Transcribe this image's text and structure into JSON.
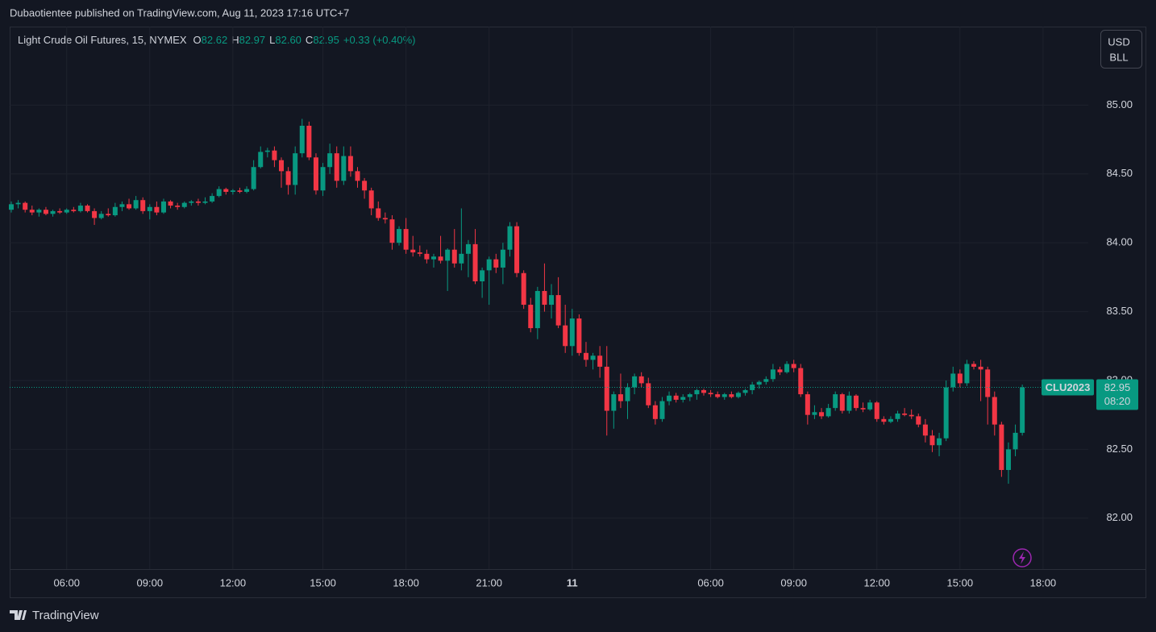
{
  "header": {
    "publisher": "Dubaotientee published on TradingView.com, Aug 11, 2023 17:16 UTC+7"
  },
  "chart_data": {
    "type": "candlestick",
    "title": "Light Crude Oil Futures, 15, NYMEX",
    "legend": [
      {
        "label": "O",
        "value": "82.62"
      },
      {
        "label": "H",
        "value": "82.97"
      },
      {
        "label": "L",
        "value": "82.60"
      },
      {
        "label": "C",
        "value": "82.95"
      }
    ],
    "change": "+0.33 (+0.40%)",
    "currency": [
      "USD",
      "BLL"
    ],
    "price_label": {
      "symbol": "CLU2023",
      "price": "82.95",
      "countdown": "08:20"
    },
    "up_color": "#089981",
    "down_color": "#f23645",
    "grid": true,
    "ylim": [
      81.63,
      85.57
    ],
    "yticks": [
      {
        "value": 82,
        "label": "82.00"
      },
      {
        "value": 82.5,
        "label": "82.50"
      },
      {
        "value": 83,
        "label": "83.00"
      },
      {
        "value": 83.5,
        "label": "83.50"
      },
      {
        "value": 84,
        "label": "84.00"
      },
      {
        "value": 84.5,
        "label": "84.50"
      },
      {
        "value": 85,
        "label": "85.00"
      }
    ],
    "categories": [
      null,
      null,
      null,
      null,
      null,
      null,
      null,
      null,
      "06:00",
      null,
      null,
      null,
      null,
      null,
      null,
      null,
      null,
      null,
      null,
      null,
      "09:00",
      null,
      null,
      null,
      null,
      null,
      null,
      null,
      null,
      null,
      null,
      null,
      "12:00",
      null,
      null,
      null,
      null,
      null,
      null,
      null,
      null,
      null,
      null,
      null,
      null,
      "15:00",
      null,
      null,
      null,
      null,
      null,
      null,
      null,
      null,
      null,
      null,
      null,
      "18:00",
      null,
      null,
      null,
      null,
      null,
      null,
      null,
      null,
      null,
      null,
      null,
      "21:00",
      null,
      null,
      null,
      null,
      null,
      null,
      null,
      null,
      null,
      null,
      null,
      "11",
      null,
      null,
      null,
      null,
      null,
      null,
      null,
      null,
      null,
      null,
      null,
      null,
      null,
      null,
      null,
      null,
      null,
      null,
      null,
      "06:00",
      null,
      null,
      null,
      null,
      null,
      null,
      null,
      null,
      null,
      null,
      null,
      "09:00",
      null,
      null,
      null,
      null,
      null,
      null,
      null,
      null,
      null,
      null,
      null,
      "12:00",
      null,
      null,
      null,
      null,
      null,
      null,
      null,
      null,
      null,
      null,
      null,
      "15:00",
      null,
      null,
      null,
      null,
      null,
      null,
      null,
      null,
      null,
      null,
      null,
      "18:00"
    ],
    "ohlc": [
      [
        84.24,
        84.3,
        84.22,
        84.28
      ],
      [
        84.28,
        84.31,
        84.25,
        84.29
      ],
      [
        84.29,
        84.3,
        84.22,
        84.24
      ],
      [
        84.24,
        84.27,
        84.2,
        84.22
      ],
      [
        84.22,
        84.25,
        84.19,
        84.24
      ],
      [
        84.24,
        84.26,
        84.2,
        84.21
      ],
      [
        84.21,
        84.24,
        84.19,
        84.23
      ],
      [
        84.23,
        84.25,
        84.21,
        84.22
      ],
      [
        84.22,
        84.25,
        84.21,
        84.24
      ],
      [
        84.24,
        84.26,
        84.22,
        84.23
      ],
      [
        84.23,
        84.29,
        84.22,
        84.27
      ],
      [
        84.27,
        84.28,
        84.22,
        84.23
      ],
      [
        84.23,
        84.25,
        84.13,
        84.18
      ],
      [
        84.18,
        84.23,
        84.17,
        84.21
      ],
      [
        84.21,
        84.25,
        84.19,
        84.2
      ],
      [
        84.2,
        84.29,
        84.19,
        84.26
      ],
      [
        84.26,
        84.3,
        84.23,
        84.28
      ],
      [
        84.28,
        84.32,
        84.24,
        84.25
      ],
      [
        84.25,
        84.34,
        84.24,
        84.31
      ],
      [
        84.31,
        84.33,
        84.21,
        84.23
      ],
      [
        84.23,
        84.28,
        84.17,
        84.26
      ],
      [
        84.26,
        84.3,
        84.2,
        84.22
      ],
      [
        84.22,
        84.32,
        84.21,
        84.3
      ],
      [
        84.3,
        84.31,
        84.25,
        84.27
      ],
      [
        84.27,
        84.29,
        84.24,
        84.26
      ],
      [
        84.26,
        84.3,
        84.25,
        84.29
      ],
      [
        84.29,
        84.31,
        84.27,
        84.3
      ],
      [
        84.3,
        84.32,
        84.27,
        84.29
      ],
      [
        84.29,
        84.33,
        84.28,
        84.3
      ],
      [
        84.3,
        84.36,
        84.29,
        84.34
      ],
      [
        84.34,
        84.41,
        84.33,
        84.39
      ],
      [
        84.39,
        84.4,
        84.35,
        84.37
      ],
      [
        84.37,
        84.39,
        84.35,
        84.38
      ],
      [
        84.38,
        84.4,
        84.36,
        84.37
      ],
      [
        84.37,
        84.41,
        84.36,
        84.39
      ],
      [
        84.39,
        84.6,
        84.38,
        84.55
      ],
      [
        84.55,
        84.7,
        84.54,
        84.66
      ],
      [
        84.66,
        84.69,
        84.62,
        84.67
      ],
      [
        84.67,
        84.7,
        84.55,
        84.6
      ],
      [
        84.6,
        84.62,
        84.4,
        84.52
      ],
      [
        84.52,
        84.55,
        84.35,
        84.42
      ],
      [
        84.42,
        84.7,
        84.35,
        84.65
      ],
      [
        84.65,
        84.9,
        84.62,
        84.85
      ],
      [
        84.85,
        84.88,
        84.6,
        84.62
      ],
      [
        84.62,
        84.65,
        84.35,
        84.38
      ],
      [
        84.38,
        84.58,
        84.34,
        84.55
      ],
      [
        84.55,
        84.72,
        84.5,
        84.65
      ],
      [
        84.65,
        84.7,
        84.4,
        84.45
      ],
      [
        84.45,
        84.7,
        84.42,
        84.63
      ],
      [
        84.63,
        84.7,
        84.48,
        84.52
      ],
      [
        84.52,
        84.55,
        84.4,
        84.45
      ],
      [
        84.45,
        84.47,
        84.32,
        84.38
      ],
      [
        84.38,
        84.4,
        84.2,
        84.25
      ],
      [
        84.25,
        84.3,
        84.16,
        84.18
      ],
      [
        84.18,
        84.22,
        84.14,
        84.17
      ],
      [
        84.17,
        84.2,
        83.95,
        84.0
      ],
      [
        84.0,
        84.12,
        83.98,
        84.1
      ],
      [
        84.1,
        84.18,
        83.92,
        83.95
      ],
      [
        83.95,
        84.05,
        83.9,
        83.93
      ],
      [
        83.93,
        83.98,
        83.9,
        83.92
      ],
      [
        83.92,
        83.95,
        83.85,
        83.88
      ],
      [
        83.88,
        83.92,
        83.82,
        83.9
      ],
      [
        83.9,
        84.05,
        83.85,
        83.87
      ],
      [
        83.87,
        83.96,
        83.65,
        83.95
      ],
      [
        83.95,
        84.1,
        83.82,
        83.85
      ],
      [
        83.85,
        84.25,
        83.8,
        83.92
      ],
      [
        83.92,
        84.02,
        83.75,
        83.99
      ],
      [
        83.99,
        84.1,
        83.7,
        83.72
      ],
      [
        83.72,
        83.82,
        83.6,
        83.8
      ],
      [
        83.8,
        83.9,
        83.55,
        83.88
      ],
      [
        83.88,
        83.92,
        83.78,
        83.82
      ],
      [
        83.82,
        84.0,
        83.7,
        83.95
      ],
      [
        83.95,
        84.15,
        83.9,
        84.12
      ],
      [
        84.12,
        84.15,
        83.75,
        83.78
      ],
      [
        83.78,
        83.8,
        83.52,
        83.55
      ],
      [
        83.55,
        83.6,
        83.35,
        83.38
      ],
      [
        83.38,
        83.68,
        83.3,
        83.65
      ],
      [
        83.65,
        83.85,
        83.5,
        83.55
      ],
      [
        83.55,
        83.7,
        83.45,
        83.62
      ],
      [
        83.62,
        83.75,
        83.38,
        83.4
      ],
      [
        83.4,
        83.55,
        83.2,
        83.25
      ],
      [
        83.25,
        83.52,
        83.18,
        83.45
      ],
      [
        83.45,
        83.48,
        83.18,
        83.2
      ],
      [
        83.2,
        83.28,
        83.1,
        83.15
      ],
      [
        83.15,
        83.2,
        83.08,
        83.18
      ],
      [
        83.18,
        83.25,
        83.02,
        83.1
      ],
      [
        83.1,
        83.25,
        82.6,
        82.78
      ],
      [
        82.78,
        82.92,
        82.65,
        82.9
      ],
      [
        82.9,
        83.05,
        82.8,
        82.85
      ],
      [
        82.85,
        82.98,
        82.72,
        82.95
      ],
      [
        82.95,
        83.05,
        82.9,
        83.03
      ],
      [
        83.03,
        83.06,
        82.95,
        82.98
      ],
      [
        82.98,
        83.02,
        82.8,
        82.82
      ],
      [
        82.82,
        82.85,
        82.68,
        82.72
      ],
      [
        82.72,
        82.88,
        82.7,
        82.85
      ],
      [
        82.85,
        82.92,
        82.82,
        82.89
      ],
      [
        82.89,
        82.91,
        82.84,
        82.86
      ],
      [
        82.86,
        82.9,
        82.84,
        82.88
      ],
      [
        82.88,
        82.91,
        82.85,
        82.9
      ],
      [
        82.9,
        82.94,
        82.86,
        82.93
      ],
      [
        82.93,
        82.94,
        82.89,
        82.91
      ],
      [
        82.91,
        82.93,
        82.88,
        82.9
      ],
      [
        82.9,
        82.92,
        82.87,
        82.88
      ],
      [
        82.88,
        82.91,
        82.86,
        82.9
      ],
      [
        82.9,
        82.92,
        82.87,
        82.88
      ],
      [
        82.88,
        82.92,
        82.87,
        82.91
      ],
      [
        82.91,
        82.94,
        82.89,
        82.93
      ],
      [
        82.93,
        82.99,
        82.9,
        82.97
      ],
      [
        82.97,
        83.0,
        82.94,
        82.99
      ],
      [
        82.99,
        83.03,
        82.97,
        83.01
      ],
      [
        83.01,
        83.12,
        82.99,
        83.08
      ],
      [
        83.08,
        83.1,
        83.04,
        83.06
      ],
      [
        83.06,
        83.14,
        83.05,
        83.12
      ],
      [
        83.12,
        83.15,
        83.06,
        83.09
      ],
      [
        83.09,
        83.12,
        82.88,
        82.9
      ],
      [
        82.9,
        82.92,
        82.68,
        82.75
      ],
      [
        82.75,
        82.82,
        82.72,
        82.77
      ],
      [
        82.77,
        82.8,
        82.72,
        82.74
      ],
      [
        82.74,
        82.83,
        82.73,
        82.8
      ],
      [
        82.8,
        82.92,
        82.78,
        82.9
      ],
      [
        82.9,
        82.91,
        82.76,
        82.78
      ],
      [
        82.78,
        82.92,
        82.76,
        82.89
      ],
      [
        82.89,
        82.9,
        82.78,
        82.8
      ],
      [
        82.8,
        82.84,
        82.77,
        82.79
      ],
      [
        82.79,
        82.86,
        82.78,
        82.84
      ],
      [
        82.84,
        82.85,
        82.7,
        82.72
      ],
      [
        82.72,
        82.74,
        82.68,
        82.7
      ],
      [
        82.7,
        82.74,
        82.69,
        82.72
      ],
      [
        82.72,
        82.78,
        82.7,
        82.76
      ],
      [
        82.76,
        82.8,
        82.74,
        82.75
      ],
      [
        82.75,
        82.79,
        82.72,
        82.74
      ],
      [
        82.74,
        82.76,
        82.66,
        82.68
      ],
      [
        82.68,
        82.72,
        82.55,
        82.6
      ],
      [
        82.6,
        82.64,
        82.48,
        82.53
      ],
      [
        82.53,
        82.62,
        82.45,
        82.58
      ],
      [
        82.58,
        83.0,
        82.56,
        82.95
      ],
      [
        82.95,
        83.1,
        82.92,
        83.05
      ],
      [
        83.05,
        83.08,
        82.95,
        82.98
      ],
      [
        82.98,
        83.15,
        82.96,
        83.12
      ],
      [
        83.12,
        83.14,
        83.08,
        83.1
      ],
      [
        83.1,
        83.15,
        82.85,
        83.08
      ],
      [
        83.08,
        83.1,
        82.68,
        82.88
      ],
      [
        82.88,
        82.92,
        82.6,
        82.68
      ],
      [
        82.68,
        82.7,
        82.3,
        82.35
      ],
      [
        82.35,
        82.55,
        82.25,
        82.5
      ],
      [
        82.5,
        82.68,
        82.45,
        82.62
      ],
      [
        82.62,
        82.97,
        82.6,
        82.95
      ],
      null,
      null,
      null,
      null
    ]
  },
  "footer": {
    "brand": "TradingView"
  }
}
